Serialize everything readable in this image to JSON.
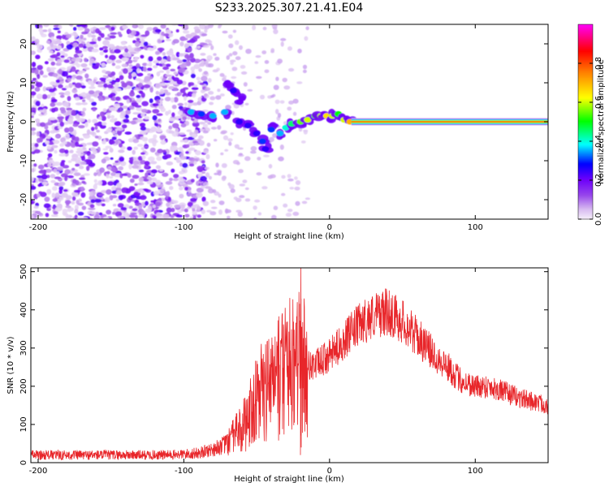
{
  "chart_data": [
    {
      "type": "heatmap",
      "title": "S233.2025.307.21.41.E04",
      "xlabel": "Height of straight line (km)",
      "ylabel": "Frequency (Hz)",
      "xlim": [
        -205,
        150
      ],
      "ylim": [
        -25,
        25
      ],
      "xticks": [
        -200,
        -100,
        0,
        100
      ],
      "yticks": [
        -20,
        -10,
        0,
        10,
        20
      ],
      "colorbar": {
        "label": "Normalized spectral amplitude",
        "range": [
          0.0,
          1.0
        ],
        "ticks": [
          "0.0",
          "0.2",
          "0.4",
          "0.6",
          "0.8"
        ],
        "colors": [
          "#f4ecf9",
          "#7f00ff",
          "#0000ff",
          "#00ffff",
          "#00ff00",
          "#ffff00",
          "#ff7f00",
          "#ff0000",
          "#ff00ff"
        ]
      },
      "features": {
        "noise_region_x": [
          -205,
          -85
        ],
        "coherent_tone": {
          "x_start": 15,
          "x_end": 150,
          "frequency_hz": 0,
          "amplitude": 0.9
        },
        "transition_track": [
          [
            -95,
            2.5,
            0.35
          ],
          [
            -88,
            2.0,
            0.3
          ],
          [
            -80,
            1.5,
            0.35
          ],
          [
            -72,
            2.5,
            0.35
          ],
          [
            -70,
            10.0,
            0.2
          ],
          [
            -66,
            8.0,
            0.25
          ],
          [
            -60,
            6.0,
            0.2
          ],
          [
            -62,
            0.0,
            0.25
          ],
          [
            -56,
            -1.0,
            0.25
          ],
          [
            -50,
            -3.0,
            0.25
          ],
          [
            -46,
            -5.0,
            0.3
          ],
          [
            -44,
            -7.0,
            0.25
          ],
          [
            -40,
            -2.0,
            0.3
          ],
          [
            -34,
            -3.0,
            0.35
          ],
          [
            -30,
            -1.5,
            0.4
          ],
          [
            -26,
            -0.5,
            0.45
          ],
          [
            -20,
            0.0,
            0.55
          ],
          [
            -15,
            0.5,
            0.6
          ],
          [
            -10,
            1.5,
            0.55
          ],
          [
            -6,
            1.5,
            0.6
          ],
          [
            -2,
            1.5,
            0.65
          ],
          [
            2,
            1.5,
            0.6
          ],
          [
            6,
            2.0,
            0.5
          ],
          [
            10,
            0.5,
            0.6
          ],
          [
            14,
            0.0,
            0.7
          ]
        ]
      }
    },
    {
      "type": "line",
      "xlabel": "Height of straight line (km)",
      "ylabel": "SNR (10 * v/v)",
      "xlim": [
        -205,
        150
      ],
      "ylim": [
        0,
        510
      ],
      "xticks": [
        -200,
        -100,
        0,
        100
      ],
      "yticks": [
        0,
        100,
        200,
        300,
        400,
        500
      ],
      "color": "#e8262a",
      "series": [
        {
          "envelope_x": [
            -205,
            -190,
            -170,
            -150,
            -130,
            -110,
            -100,
            -90,
            -80,
            -70,
            -60,
            -50,
            -40,
            -30,
            -20,
            -10,
            0,
            10,
            20,
            30,
            40,
            50,
            60,
            70,
            80,
            90,
            100,
            110,
            120,
            130,
            140,
            150
          ],
          "envelope_y": [
            20,
            20,
            20,
            20,
            20,
            20,
            22,
            25,
            35,
            50,
            90,
            160,
            200,
            240,
            255,
            255,
            280,
            320,
            360,
            385,
            395,
            370,
            330,
            290,
            255,
            215,
            200,
            200,
            185,
            170,
            160,
            150
          ]
        }
      ],
      "annotations": [
        {
          "x": -20,
          "y": 510,
          "note": "spike"
        }
      ]
    }
  ]
}
